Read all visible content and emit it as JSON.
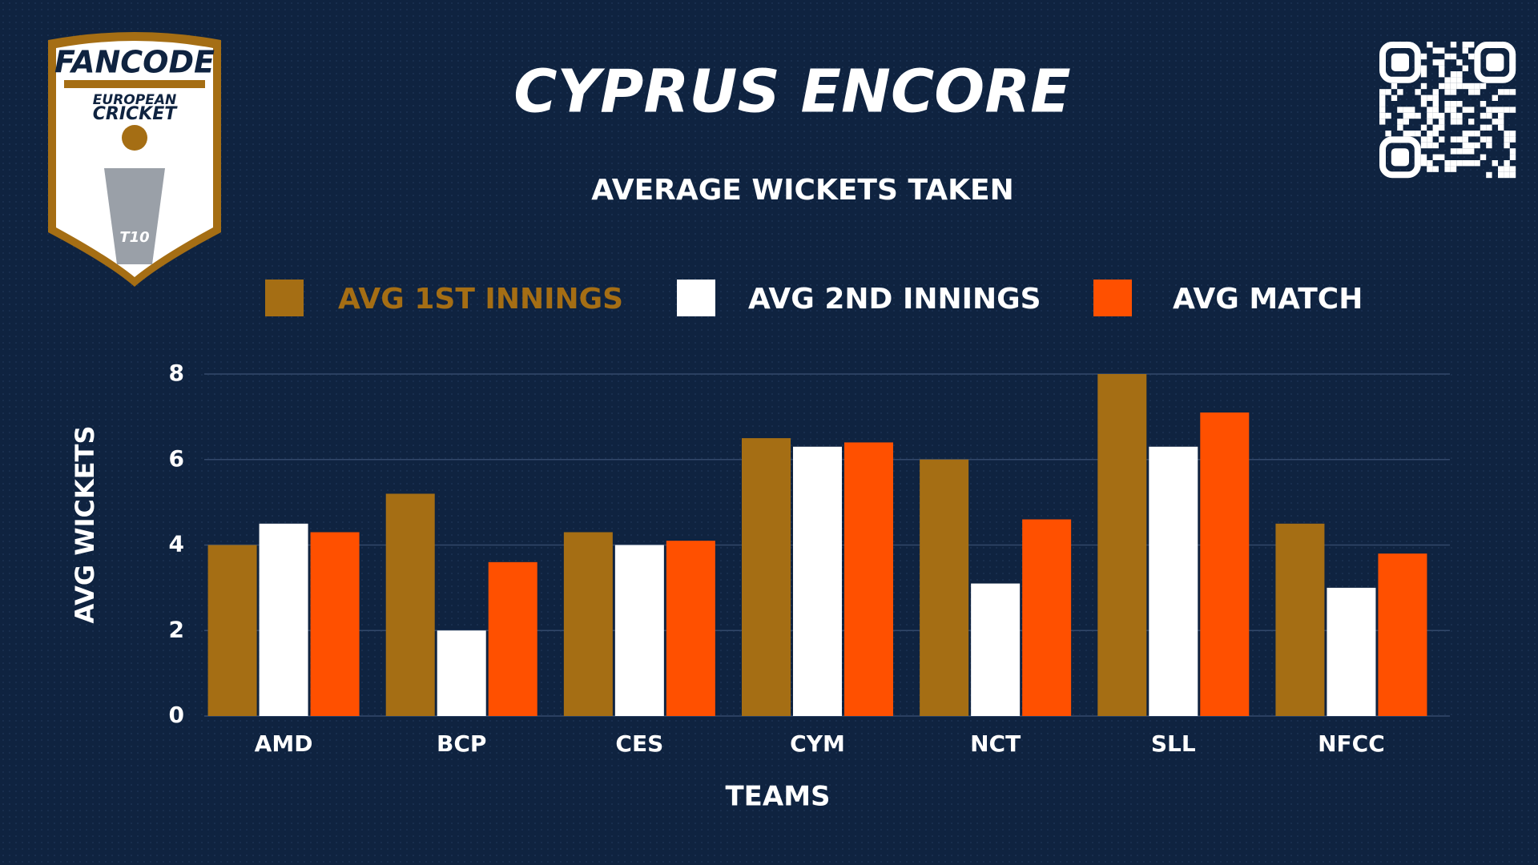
{
  "logo": {
    "brand": "FANCODE",
    "line1": "EUROPEAN",
    "line2": "CRICKET",
    "badge": "T10"
  },
  "chart_data": {
    "type": "bar",
    "title": "CYPRUS ENCORE",
    "subtitle": "AVERAGE WICKETS TAKEN",
    "x_label": "TEAMS",
    "y_label": "AVG WICKETS",
    "categories": [
      "AMD",
      "BCP",
      "CES",
      "CYM",
      "NCT",
      "SLL",
      "NFCC"
    ],
    "series": [
      {
        "name": "AVG 1ST INNINGS",
        "color": "#a56e14",
        "values": [
          4,
          5.2,
          4.3,
          6.5,
          6,
          8,
          4.5
        ]
      },
      {
        "name": "AVG 2ND INNINGS",
        "color": "#ffffff",
        "values": [
          4.5,
          2,
          4,
          6.3,
          3.1,
          6.3,
          3
        ]
      },
      {
        "name": "AVG MATCH",
        "color": "#ff5000",
        "values": [
          4.3,
          3.6,
          4.1,
          6.4,
          4.6,
          7.1,
          3.8
        ]
      }
    ],
    "ylim": [
      0,
      8
    ],
    "yticks": [
      0,
      2,
      4,
      6,
      8
    ],
    "grid": true,
    "legend": "top"
  }
}
